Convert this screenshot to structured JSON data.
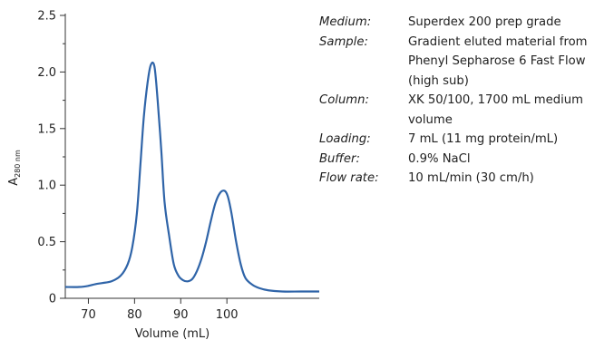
{
  "chart_data": {
    "type": "line",
    "xlabel": "Volume (mL)",
    "ylabel": {
      "main": "A",
      "subscript": "280 nm"
    },
    "xlim": [
      65,
      120
    ],
    "ylim": [
      0,
      2.5
    ],
    "x_ticks": [
      70,
      80,
      90,
      100
    ],
    "y_ticks": [
      "0",
      "0.5",
      "1.0",
      "1.5",
      "2.0",
      "2.5"
    ],
    "y_tick_values": [
      0,
      0.5,
      1.0,
      1.5,
      2.0,
      2.5
    ],
    "grid": false,
    "series": [
      {
        "color": "#2f64a8",
        "x": [
          65,
          68,
          70,
          71.5,
          73,
          75,
          77,
          78.5,
          79.5,
          80.5,
          81.3,
          82,
          82.8,
          83.5,
          84.3,
          85,
          85.8,
          86.5,
          87.5,
          88.5,
          89.5,
          90.5,
          91.5,
          92.5,
          93.5,
          94.5,
          95.5,
          96.5,
          97.5,
          98.5,
          99.5,
          100.2,
          101,
          102,
          103,
          104,
          105.5,
          107,
          109,
          112,
          116,
          120
        ],
        "y": [
          0.1,
          0.1,
          0.11,
          0.125,
          0.135,
          0.15,
          0.2,
          0.3,
          0.45,
          0.75,
          1.2,
          1.6,
          1.9,
          2.06,
          2.05,
          1.75,
          1.3,
          0.85,
          0.55,
          0.3,
          0.2,
          0.16,
          0.15,
          0.17,
          0.24,
          0.35,
          0.5,
          0.68,
          0.84,
          0.93,
          0.95,
          0.9,
          0.75,
          0.5,
          0.3,
          0.18,
          0.12,
          0.09,
          0.07,
          0.06,
          0.06,
          0.06
        ]
      }
    ]
  },
  "info": [
    {
      "key": "Medium:",
      "lines": [
        "Superdex 200 prep grade"
      ]
    },
    {
      "key": "Sample:",
      "lines": [
        "Gradient eluted material from",
        "Phenyl Sepharose 6 Fast Flow",
        "(high sub)"
      ]
    },
    {
      "key": "Column:",
      "lines": [
        "XK 50/100, 1700 mL medium",
        "volume"
      ]
    },
    {
      "key": "Loading:",
      "lines": [
        "7 mL (11 mg protein/mL)"
      ]
    },
    {
      "key": "Buffer:",
      "lines": [
        "0.9% NaCl"
      ]
    },
    {
      "key": "Flow rate:",
      "lines": [
        "10 mL/min (30 cm/h)"
      ]
    }
  ]
}
